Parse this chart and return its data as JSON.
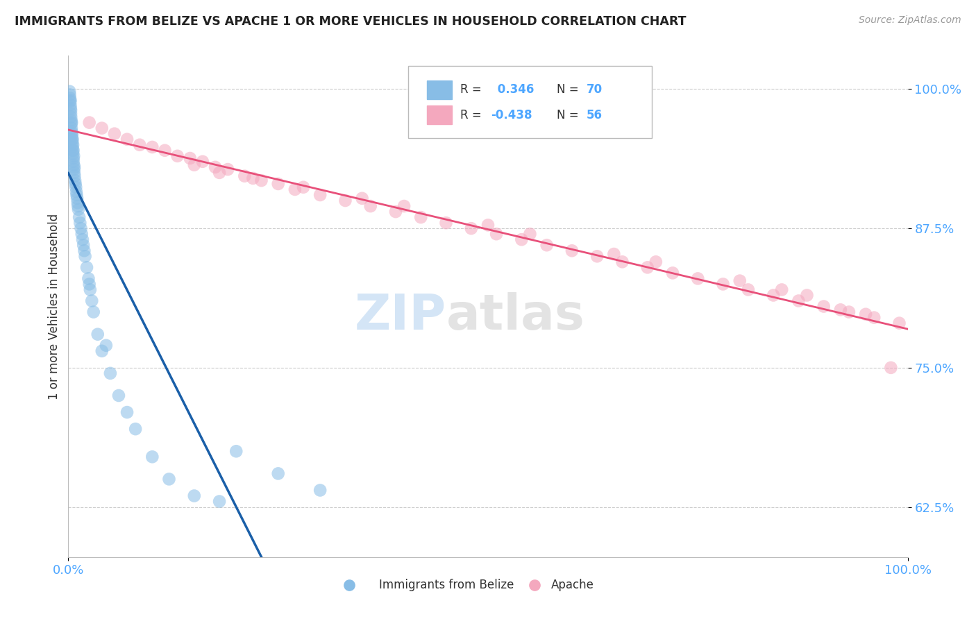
{
  "title": "IMMIGRANTS FROM BELIZE VS APACHE 1 OR MORE VEHICLES IN HOUSEHOLD CORRELATION CHART",
  "source": "Source: ZipAtlas.com",
  "ylabel": "1 or more Vehicles in Household",
  "y_ticks": [
    62.5,
    75.0,
    87.5,
    100.0
  ],
  "xlim": [
    0.0,
    100.0
  ],
  "ylim": [
    58.0,
    103.0
  ],
  "label1": "Immigrants from Belize",
  "label2": "Apache",
  "color_blue": "#88bde6",
  "color_blue_line": "#1a5fa8",
  "color_pink": "#f4a8be",
  "color_pink_line": "#e8507a",
  "color_axis": "#4da6ff",
  "watermark_zip": "ZIP",
  "watermark_atlas": "atlas",
  "belize_x": [
    0.15,
    0.18,
    0.2,
    0.22,
    0.25,
    0.25,
    0.28,
    0.3,
    0.3,
    0.32,
    0.35,
    0.35,
    0.38,
    0.4,
    0.4,
    0.42,
    0.45,
    0.45,
    0.48,
    0.5,
    0.5,
    0.52,
    0.55,
    0.55,
    0.6,
    0.6,
    0.62,
    0.65,
    0.65,
    0.68,
    0.7,
    0.72,
    0.75,
    0.8,
    0.85,
    0.9,
    0.95,
    1.0,
    1.05,
    1.1,
    1.15,
    1.2,
    1.3,
    1.4,
    1.5,
    1.6,
    1.7,
    1.8,
    1.9,
    2.0,
    2.2,
    2.4,
    2.6,
    2.8,
    3.0,
    3.5,
    4.0,
    5.0,
    6.0,
    7.0,
    8.0,
    10.0,
    12.0,
    15.0,
    18.0,
    20.0,
    25.0,
    30.0,
    2.5,
    4.5
  ],
  "belize_y": [
    99.8,
    99.5,
    99.2,
    98.9,
    99.0,
    98.6,
    98.3,
    97.8,
    98.1,
    97.5,
    97.2,
    96.9,
    96.5,
    96.2,
    97.0,
    95.8,
    95.5,
    96.0,
    95.2,
    94.8,
    95.5,
    94.5,
    94.2,
    95.0,
    93.8,
    94.5,
    93.5,
    93.2,
    94.0,
    92.8,
    92.5,
    93.0,
    92.2,
    91.8,
    91.5,
    91.2,
    90.8,
    90.5,
    90.2,
    89.8,
    89.5,
    89.2,
    88.5,
    88.0,
    87.5,
    87.0,
    86.5,
    86.0,
    85.5,
    85.0,
    84.0,
    83.0,
    82.0,
    81.0,
    80.0,
    78.0,
    76.5,
    74.5,
    72.5,
    71.0,
    69.5,
    67.0,
    65.0,
    63.5,
    63.0,
    67.5,
    65.5,
    64.0,
    82.5,
    77.0
  ],
  "apache_x": [
    2.5,
    4.0,
    5.5,
    7.0,
    8.5,
    10.0,
    11.5,
    13.0,
    14.5,
    16.0,
    17.5,
    19.0,
    21.0,
    23.0,
    25.0,
    27.0,
    30.0,
    33.0,
    36.0,
    39.0,
    42.0,
    45.0,
    48.0,
    51.0,
    54.0,
    57.0,
    60.0,
    63.0,
    66.0,
    69.0,
    72.0,
    75.0,
    78.0,
    81.0,
    84.0,
    87.0,
    90.0,
    93.0,
    96.0,
    99.0,
    15.0,
    18.0,
    22.0,
    28.0,
    35.0,
    40.0,
    50.0,
    55.0,
    65.0,
    70.0,
    80.0,
    85.0,
    88.0,
    92.0,
    95.0,
    98.0
  ],
  "apache_y": [
    97.0,
    96.5,
    96.0,
    95.5,
    95.0,
    94.8,
    94.5,
    94.0,
    93.8,
    93.5,
    93.0,
    92.8,
    92.2,
    91.8,
    91.5,
    91.0,
    90.5,
    90.0,
    89.5,
    89.0,
    88.5,
    88.0,
    87.5,
    87.0,
    86.5,
    86.0,
    85.5,
    85.0,
    84.5,
    84.0,
    83.5,
    83.0,
    82.5,
    82.0,
    81.5,
    81.0,
    80.5,
    80.0,
    79.5,
    79.0,
    93.2,
    92.5,
    92.0,
    91.2,
    90.2,
    89.5,
    87.8,
    87.0,
    85.2,
    84.5,
    82.8,
    82.0,
    81.5,
    80.2,
    79.8,
    75.0
  ]
}
